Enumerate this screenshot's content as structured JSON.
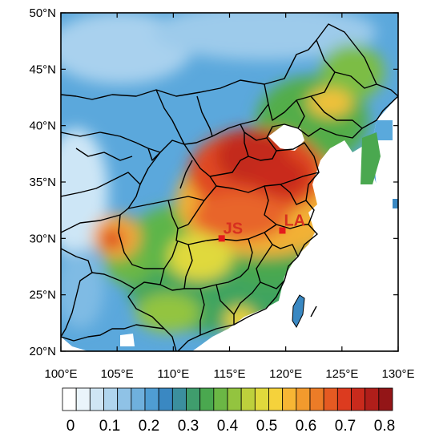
{
  "map": {
    "lat_labels": [
      "50°N",
      "45°N",
      "40°N",
      "35°N",
      "30°N",
      "25°N",
      "20°N"
    ],
    "lon_labels": [
      "100°E",
      "105°E",
      "110°E",
      "115°E",
      "120°E",
      "125°E",
      "130°E"
    ],
    "sites": [
      {
        "label": "JS",
        "lon": 114.3,
        "lat": 30.0,
        "color": "#e41a1c"
      },
      {
        "label": "LA",
        "lon": 119.7,
        "lat": 30.7,
        "color": "#e41a1c"
      }
    ]
  },
  "colorbar": {
    "tick_labels": [
      "0",
      "0.1",
      "0.2",
      "0.3",
      "0.4",
      "0.5",
      "0.6",
      "0.7",
      "0.8"
    ],
    "colors": [
      "#ffffff",
      "#eaf4fb",
      "#cfe5f4",
      "#b0d5ee",
      "#8fc2e6",
      "#6fb0dd",
      "#4f9dd3",
      "#3a88c2",
      "#3b8f9e",
      "#3f9d6d",
      "#4aa84f",
      "#6bb745",
      "#93c43f",
      "#bdd03c",
      "#e0d93c",
      "#f5d23b",
      "#f7b634",
      "#f29a2d",
      "#ec7c27",
      "#e55a22",
      "#dc3b1f",
      "#c92a1c",
      "#b01e1a",
      "#931517"
    ]
  }
}
